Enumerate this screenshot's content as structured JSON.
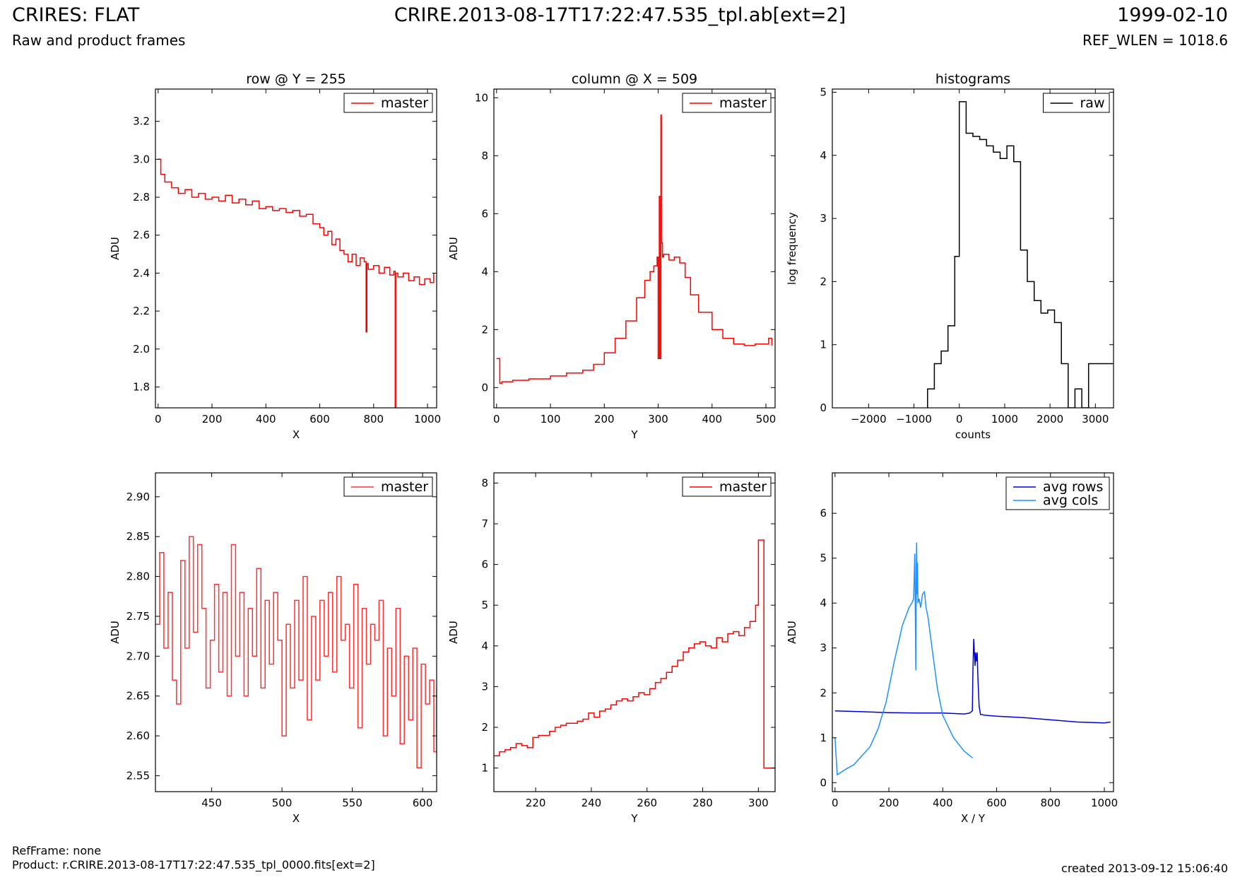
{
  "header": {
    "title": "CRIRES: FLAT",
    "subtitle": "Raw and product frames",
    "file": "CRIRE.2013-08-17T17:22:47.535_tpl.ab[ext=2]",
    "date": "1999-02-10",
    "ref_wlen": "REF_WLEN = 1018.6"
  },
  "footer": {
    "ref_frame": "RefFrame: none",
    "product": "Product: r.CRIRE.2013-08-17T17:22:47.535_tpl_0000.fits[ext=2]",
    "created": "created 2013-09-12 15:06:40"
  },
  "chart_data": [
    {
      "id": "row-full",
      "type": "line",
      "title": "row @ Y = 255",
      "xlabel": "X",
      "ylabel": "ADU",
      "xlim": [
        -10,
        1034
      ],
      "ylim": [
        1.69,
        3.37
      ],
      "xticks": [
        0,
        200,
        400,
        600,
        800,
        1000
      ],
      "yticks": [
        1.8,
        2.0,
        2.2,
        2.4,
        2.6,
        2.8,
        3.0,
        3.2
      ],
      "tick_decimals": 1,
      "step": true,
      "legend": {
        "position": "top-right"
      },
      "series": [
        {
          "name": "master",
          "color": "#ff0000",
          "x": [
            0,
            10,
            25,
            50,
            75,
            100,
            125,
            150,
            175,
            200,
            225,
            250,
            275,
            300,
            325,
            350,
            375,
            400,
            425,
            450,
            475,
            500,
            525,
            550,
            575,
            600,
            615,
            630,
            645,
            660,
            675,
            690,
            705,
            720,
            735,
            750,
            765,
            772,
            775,
            780,
            800,
            820,
            840,
            860,
            875,
            880,
            882,
            890,
            910,
            930,
            950,
            970,
            990,
            1010,
            1023
          ],
          "y": [
            3.0,
            2.92,
            2.88,
            2.85,
            2.82,
            2.84,
            2.8,
            2.82,
            2.79,
            2.8,
            2.78,
            2.81,
            2.77,
            2.79,
            2.76,
            2.78,
            2.74,
            2.75,
            2.73,
            2.74,
            2.72,
            2.73,
            2.7,
            2.71,
            2.66,
            2.64,
            2.6,
            2.62,
            2.55,
            2.58,
            2.52,
            2.5,
            2.46,
            2.5,
            2.44,
            2.48,
            2.46,
            2.09,
            2.45,
            2.42,
            2.44,
            2.4,
            2.43,
            2.39,
            2.41,
            1.69,
            2.4,
            2.38,
            2.4,
            2.36,
            2.38,
            2.34,
            2.37,
            2.35,
            2.4
          ]
        }
      ]
    },
    {
      "id": "column-full",
      "type": "line",
      "title": "column @ X = 509",
      "xlabel": "Y",
      "ylabel": "ADU",
      "xlim": [
        -5,
        517
      ],
      "ylim": [
        -0.7,
        10.3
      ],
      "xticks": [
        0,
        100,
        200,
        300,
        400,
        500
      ],
      "yticks": [
        0,
        2,
        4,
        6,
        8,
        10
      ],
      "tick_decimals": 0,
      "step": true,
      "legend": {
        "position": "top-right"
      },
      "series": [
        {
          "name": "master",
          "color": "#ff0000",
          "x": [
            0,
            5,
            6,
            10,
            30,
            60,
            100,
            130,
            160,
            180,
            200,
            220,
            240,
            260,
            275,
            285,
            292,
            298,
            300,
            302,
            303,
            305,
            306,
            308,
            310,
            320,
            330,
            340,
            350,
            360,
            375,
            400,
            420,
            440,
            460,
            480,
            500,
            505,
            511
          ],
          "y": [
            1.0,
            1.0,
            0.15,
            0.2,
            0.25,
            0.3,
            0.4,
            0.5,
            0.6,
            0.8,
            1.2,
            1.7,
            2.3,
            3.1,
            3.7,
            4.0,
            4.2,
            4.5,
            1.0,
            6.6,
            1.0,
            9.4,
            5.0,
            4.5,
            4.6,
            4.4,
            4.5,
            4.3,
            3.8,
            3.2,
            2.6,
            2.0,
            1.7,
            1.5,
            1.45,
            1.5,
            1.5,
            1.7,
            1.45
          ]
        }
      ]
    },
    {
      "id": "histograms",
      "type": "line",
      "title": "histograms",
      "xlabel": "counts",
      "ylabel": "log frequency",
      "xlim": [
        -2800,
        3400
      ],
      "ylim": [
        0,
        5.05
      ],
      "xticks": [
        -2000,
        -1000,
        0,
        1000,
        2000,
        3000
      ],
      "yticks": [
        0,
        1,
        2,
        3,
        4,
        5
      ],
      "tick_decimals": 0,
      "step": false,
      "legend": {
        "position": "top-right"
      },
      "series": [
        {
          "name": "raw",
          "color": "#000000",
          "x": [
            -700,
            -700,
            -550,
            -550,
            -400,
            -400,
            -250,
            -250,
            -100,
            -100,
            0,
            0,
            150,
            150,
            300,
            300,
            450,
            450,
            600,
            600,
            750,
            750,
            900,
            900,
            1050,
            1050,
            1200,
            1200,
            1350,
            1350,
            1500,
            1500,
            1650,
            1650,
            1800,
            1800,
            1950,
            1950,
            2100,
            2100,
            2250,
            2250,
            2400,
            2400,
            2550,
            2550,
            2700,
            2700,
            2850,
            2850,
            3000,
            3000,
            3150,
            3150,
            3300,
            3300,
            3400
          ],
          "y": [
            0,
            0.3,
            0.3,
            0.7,
            0.7,
            0.9,
            0.9,
            1.3,
            1.3,
            2.4,
            2.4,
            4.85,
            4.85,
            4.35,
            4.35,
            4.3,
            4.3,
            4.25,
            4.25,
            4.15,
            4.15,
            4.05,
            4.05,
            3.95,
            3.95,
            4.15,
            4.15,
            3.9,
            3.9,
            2.5,
            2.5,
            2.0,
            2.0,
            1.7,
            1.7,
            1.5,
            1.5,
            1.55,
            1.55,
            1.35,
            1.35,
            0.7,
            0.7,
            0,
            0,
            0.3,
            0.3,
            0,
            0,
            0.7,
            0.7,
            0.7,
            0.7,
            0.7,
            0.7,
            0.7,
            0.7
          ]
        }
      ]
    },
    {
      "id": "row-zoom",
      "type": "line",
      "title": "",
      "xlabel": "X",
      "ylabel": "ADU",
      "xlim": [
        410,
        610
      ],
      "ylim": [
        2.53,
        2.93
      ],
      "xticks": [
        450,
        500,
        550,
        600
      ],
      "yticks": [
        2.55,
        2.6,
        2.65,
        2.7,
        2.75,
        2.8,
        2.85,
        2.9
      ],
      "tick_decimals": 2,
      "step": true,
      "legend": {
        "position": "top-right"
      },
      "series": [
        {
          "name": "master",
          "color": "#ff3030",
          "x": [
            410,
            413,
            416,
            419,
            422,
            425,
            428,
            431,
            434,
            437,
            440,
            443,
            446,
            449,
            452,
            455,
            458,
            461,
            464,
            467,
            470,
            473,
            476,
            479,
            482,
            485,
            488,
            491,
            494,
            497,
            500,
            503,
            506,
            509,
            512,
            515,
            518,
            521,
            524,
            527,
            530,
            533,
            536,
            539,
            542,
            545,
            548,
            551,
            554,
            557,
            560,
            563,
            566,
            569,
            572,
            575,
            578,
            581,
            584,
            587,
            590,
            593,
            596,
            599,
            602,
            605,
            608,
            610
          ],
          "y": [
            2.74,
            2.83,
            2.71,
            2.78,
            2.67,
            2.64,
            2.82,
            2.71,
            2.85,
            2.73,
            2.84,
            2.76,
            2.66,
            2.72,
            2.79,
            2.68,
            2.78,
            2.65,
            2.84,
            2.7,
            2.78,
            2.65,
            2.76,
            2.7,
            2.81,
            2.66,
            2.77,
            2.69,
            2.78,
            2.72,
            2.6,
            2.74,
            2.66,
            2.77,
            2.67,
            2.8,
            2.62,
            2.75,
            2.67,
            2.77,
            2.7,
            2.78,
            2.68,
            2.8,
            2.72,
            2.74,
            2.66,
            2.79,
            2.61,
            2.76,
            2.69,
            2.74,
            2.72,
            2.77,
            2.6,
            2.71,
            2.65,
            2.76,
            2.59,
            2.7,
            2.62,
            2.71,
            2.56,
            2.69,
            2.64,
            2.67,
            2.58,
            2.66
          ]
        }
      ]
    },
    {
      "id": "column-zoom",
      "type": "line",
      "title": "",
      "xlabel": "Y",
      "ylabel": "ADU",
      "xlim": [
        205,
        306
      ],
      "ylim": [
        0.42,
        8.25
      ],
      "xticks": [
        220,
        240,
        260,
        280,
        300
      ],
      "yticks": [
        1,
        2,
        3,
        4,
        5,
        6,
        7,
        8
      ],
      "tick_decimals": 0,
      "step": true,
      "legend": {
        "position": "top-right"
      },
      "series": [
        {
          "name": "master",
          "color": "#ff0000",
          "x": [
            205,
            207,
            209,
            211,
            213,
            215,
            217,
            219,
            221,
            223,
            225,
            227,
            229,
            231,
            233,
            235,
            237,
            239,
            241,
            243,
            245,
            247,
            249,
            251,
            253,
            255,
            257,
            259,
            261,
            263,
            265,
            267,
            269,
            271,
            273,
            275,
            277,
            279,
            281,
            283,
            285,
            287,
            289,
            291,
            293,
            295,
            297,
            299,
            300,
            301,
            302,
            304,
            306
          ],
          "y": [
            1.3,
            1.4,
            1.45,
            1.5,
            1.6,
            1.55,
            1.5,
            1.75,
            1.8,
            1.8,
            1.9,
            2.0,
            2.05,
            2.1,
            2.1,
            2.15,
            2.2,
            2.35,
            2.25,
            2.4,
            2.45,
            2.55,
            2.65,
            2.7,
            2.65,
            2.75,
            2.85,
            2.8,
            2.95,
            3.1,
            3.2,
            3.35,
            3.5,
            3.65,
            3.85,
            3.95,
            4.05,
            4.1,
            4.0,
            3.95,
            4.2,
            4.1,
            4.3,
            4.35,
            4.25,
            4.45,
            4.6,
            5.0,
            6.6,
            6.6,
            1.0,
            1.0,
            1.0
          ]
        }
      ]
    },
    {
      "id": "averages",
      "type": "line",
      "title": "",
      "xlabel": "X / Y",
      "ylabel": "ADU",
      "xlim": [
        -10,
        1034
      ],
      "ylim": [
        -0.2,
        6.9
      ],
      "xticks": [
        0,
        200,
        400,
        600,
        800,
        1000
      ],
      "yticks": [
        0,
        1,
        2,
        3,
        4,
        5,
        6
      ],
      "tick_decimals": 0,
      "step": false,
      "legend": {
        "position": "top-right"
      },
      "series": [
        {
          "name": "avg rows",
          "color": "#0000dd",
          "x": [
            0,
            100,
            200,
            300,
            400,
            480,
            500,
            510,
            512,
            515,
            520,
            522,
            525,
            528,
            530,
            535,
            540,
            560,
            600,
            700,
            800,
            900,
            1000,
            1023
          ],
          "y": [
            1.6,
            1.58,
            1.56,
            1.55,
            1.55,
            1.53,
            1.55,
            1.6,
            2.5,
            3.2,
            2.6,
            2.9,
            2.7,
            2.9,
            2.4,
            1.7,
            1.52,
            1.5,
            1.48,
            1.45,
            1.4,
            1.35,
            1.33,
            1.35
          ]
        },
        {
          "name": "avg cols",
          "color": "#1e90ff",
          "x": [
            0,
            5,
            8,
            15,
            40,
            70,
            100,
            130,
            160,
            190,
            220,
            250,
            275,
            285,
            292,
            296,
            298,
            300,
            302,
            303,
            305,
            306,
            308,
            312,
            318,
            325,
            332,
            338,
            345,
            360,
            380,
            400,
            440,
            480,
            511
          ],
          "y": [
            1.0,
            0.5,
            0.18,
            0.2,
            0.3,
            0.4,
            0.6,
            0.8,
            1.2,
            1.8,
            2.7,
            3.5,
            3.9,
            4.0,
            4.1,
            5.1,
            3.9,
            2.5,
            4.8,
            5.35,
            4.2,
            4.9,
            4.0,
            4.1,
            3.9,
            4.2,
            4.25,
            3.9,
            3.7,
            3.0,
            2.1,
            1.5,
            1.0,
            0.7,
            0.55
          ]
        }
      ]
    }
  ]
}
